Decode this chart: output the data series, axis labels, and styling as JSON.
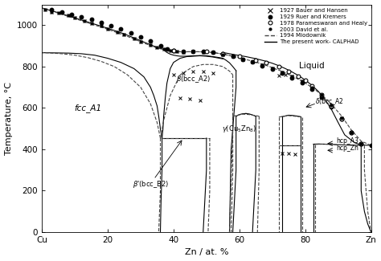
{
  "xlabel": "Zn / at. %",
  "ylabel": "Temperature, °C",
  "xlim": [
    0,
    100
  ],
  "ylim": [
    0,
    1100
  ],
  "xticks": [
    0,
    20,
    40,
    60,
    80,
    100
  ],
  "xticklabels": [
    "Cu",
    "20",
    "40",
    "60",
    "80",
    "Zn"
  ],
  "yticks": [
    0,
    200,
    400,
    600,
    800,
    1000
  ],
  "bg_color": "#ffffff",
  "calphad": {
    "liquidus_left": {
      "x": [
        0,
        5,
        10,
        15,
        20,
        25,
        30,
        33,
        35,
        36,
        37
      ],
      "y": [
        1083,
        1060,
        1035,
        1010,
        985,
        958,
        925,
        905,
        893,
        887,
        883
      ]
    },
    "liquidus_right": {
      "x": [
        55,
        57,
        59,
        62,
        65,
        68,
        70,
        72,
        74,
        76,
        78,
        80,
        82,
        84,
        86,
        88,
        90,
        92,
        95,
        97,
        100
      ],
      "y": [
        868,
        862,
        856,
        848,
        838,
        826,
        816,
        804,
        790,
        774,
        756,
        735,
        710,
        680,
        642,
        592,
        530,
        470,
        432,
        421,
        419
      ]
    },
    "fcc_solidus": {
      "x": [
        0,
        5,
        10,
        15,
        20,
        25,
        30,
        33,
        35,
        36,
        37
      ],
      "y": [
        1083,
        1060,
        1035,
        1010,
        985,
        958,
        925,
        905,
        893,
        887,
        883
      ]
    },
    "fcc_solvus": {
      "x": [
        36.5,
        36,
        35.5,
        35,
        34,
        33,
        31,
        28,
        24,
        20,
        16,
        12,
        8,
        4,
        0
      ],
      "y": [
        454,
        500,
        560,
        610,
        660,
        700,
        750,
        790,
        820,
        840,
        855,
        862,
        865,
        866,
        867
      ]
    },
    "beta_liquidus_left": {
      "x": [
        37,
        37.5,
        38,
        39,
        40,
        41,
        42,
        44,
        46,
        48,
        50,
        52,
        54,
        55
      ],
      "y": [
        883,
        874,
        868,
        860,
        855,
        852,
        850,
        850,
        852,
        853,
        852,
        848,
        843,
        840
      ]
    },
    "beta_liquidus_right": {
      "x": [
        55,
        56,
        57,
        58,
        59
      ],
      "y": [
        840,
        830,
        818,
        800,
        780
      ]
    },
    "beta_left_solidus": {
      "x": [
        36.5,
        36.8,
        37,
        37.5,
        38,
        39,
        40,
        42,
        44,
        46,
        48,
        50,
        52,
        54,
        55
      ],
      "y": [
        454,
        500,
        560,
        650,
        720,
        790,
        820,
        840,
        848,
        850,
        852,
        850,
        846,
        840,
        837
      ]
    },
    "beta_right_solvus": {
      "x": [
        59,
        59,
        58.5,
        58,
        57.5,
        57
      ],
      "y": [
        780,
        700,
        600,
        500,
        400,
        0
      ]
    },
    "beta_prime_left": {
      "x": [
        36.5,
        36.5,
        36.2,
        36
      ],
      "y": [
        454,
        300,
        150,
        0
      ]
    },
    "beta_prime_right": {
      "x": [
        50,
        50,
        49.5,
        49
      ],
      "y": [
        454,
        300,
        150,
        0
      ]
    },
    "beta_eutectoid": {
      "x": [
        36.5,
        42,
        46,
        50
      ],
      "y": [
        454,
        454,
        454,
        454
      ]
    },
    "gamma_left": {
      "x": [
        59,
        59,
        58.5,
        58
      ],
      "y": [
        560,
        300,
        150,
        0
      ]
    },
    "gamma_right": {
      "x": [
        65,
        65,
        64.5,
        64
      ],
      "y": [
        560,
        300,
        150,
        0
      ]
    },
    "gamma_top_left": {
      "x": [
        59,
        60,
        61,
        62
      ],
      "y": [
        560,
        568,
        572,
        573
      ]
    },
    "gamma_top_right": {
      "x": [
        62,
        63,
        64,
        65
      ],
      "y": [
        573,
        571,
        566,
        560
      ]
    },
    "delta_left": {
      "x": [
        73,
        73,
        73
      ],
      "y": [
        558,
        420,
        0
      ]
    },
    "delta_right": {
      "x": [
        78.5,
        78.5,
        78.5
      ],
      "y": [
        558,
        420,
        0
      ]
    },
    "delta_top": {
      "x": [
        73,
        75,
        76,
        77,
        78.5
      ],
      "y": [
        558,
        565,
        564,
        562,
        558
      ]
    },
    "delta_floor": {
      "x": [
        73,
        75,
        78.5
      ],
      "y": [
        420,
        420,
        420
      ]
    },
    "epsilon_left": {
      "x": [
        82.5,
        82.5,
        82.5
      ],
      "y": [
        425,
        300,
        0
      ]
    },
    "epsilon_top": {
      "x": [
        82.5,
        84,
        86,
        88,
        90,
        92,
        94,
        96
      ],
      "y": [
        425,
        426,
        425,
        424,
        422,
        421,
        420,
        419
      ]
    },
    "hcp_zn_left": {
      "x": [
        97,
        97,
        97,
        98,
        99,
        100
      ],
      "y": [
        419,
        350,
        200,
        100,
        40,
        0
      ]
    }
  },
  "miodownik": {
    "liquidus": {
      "x": [
        0,
        5,
        10,
        15,
        20,
        25,
        30,
        33,
        35,
        37,
        39,
        41,
        43,
        46,
        49,
        52,
        55,
        58,
        61,
        64,
        67,
        70,
        73,
        76,
        79,
        82,
        85,
        88,
        91,
        94,
        97,
        100
      ],
      "y": [
        1083,
        1058,
        1032,
        1006,
        980,
        952,
        920,
        901,
        890,
        882,
        876,
        872,
        871,
        872,
        871,
        868,
        860,
        850,
        838,
        826,
        812,
        795,
        776,
        754,
        730,
        700,
        664,
        618,
        562,
        494,
        440,
        419
      ]
    },
    "fcc_solvus": {
      "x": [
        36,
        35,
        33,
        30,
        26,
        22,
        18,
        14,
        10,
        6,
        2,
        0
      ],
      "y": [
        454,
        530,
        620,
        700,
        760,
        800,
        825,
        843,
        855,
        862,
        866,
        867
      ]
    },
    "beta_liquidus": {
      "x": [
        37,
        39,
        41,
        43,
        46,
        49,
        52,
        55,
        58
      ],
      "y": [
        882,
        876,
        872,
        871,
        872,
        871,
        868,
        860,
        850
      ]
    },
    "beta_left_solidus": {
      "x": [
        36,
        37,
        39,
        42,
        46,
        49,
        52,
        55,
        57,
        58
      ],
      "y": [
        454,
        540,
        660,
        760,
        800,
        810,
        810,
        800,
        778,
        760
      ]
    },
    "beta_right": {
      "x": [
        58,
        58,
        57.5,
        57
      ],
      "y": [
        760,
        500,
        250,
        0
      ]
    },
    "beta_prime_left": {
      "x": [
        36,
        36,
        35.5
      ],
      "y": [
        454,
        200,
        0
      ]
    },
    "beta_prime_right": {
      "x": [
        51,
        51,
        50.5
      ],
      "y": [
        454,
        200,
        0
      ]
    },
    "beta_eutectoid": {
      "x": [
        36,
        42,
        46,
        51
      ],
      "y": [
        454,
        454,
        454,
        454
      ]
    },
    "gamma_left": {
      "x": [
        58,
        58,
        57.5
      ],
      "y": [
        560,
        300,
        0
      ]
    },
    "gamma_right": {
      "x": [
        66,
        66,
        65.5
      ],
      "y": [
        560,
        300,
        0
      ]
    },
    "gamma_top": {
      "x": [
        58,
        61,
        63,
        66
      ],
      "y": [
        560,
        570,
        568,
        560
      ]
    },
    "delta_left": {
      "x": [
        72,
        72,
        72
      ],
      "y": [
        556,
        418,
        0
      ]
    },
    "delta_right": {
      "x": [
        79,
        79,
        79
      ],
      "y": [
        556,
        418,
        0
      ]
    },
    "delta_top": {
      "x": [
        72,
        75,
        79
      ],
      "y": [
        556,
        563,
        556
      ]
    },
    "delta_floor": {
      "x": [
        72,
        75,
        79
      ],
      "y": [
        418,
        418,
        418
      ]
    },
    "epsilon_left": {
      "x": [
        83,
        83,
        83
      ],
      "y": [
        424,
        200,
        0
      ]
    },
    "epsilon_top": {
      "x": [
        83,
        86,
        89,
        92,
        95,
        97
      ],
      "y": [
        424,
        425,
        423,
        421,
        420,
        419
      ]
    },
    "hcp_zn_left": {
      "x": [
        98,
        98,
        99,
        100
      ],
      "y": [
        419,
        300,
        100,
        0
      ]
    }
  },
  "bauer_hansen": {
    "liquidus": {
      "x": [
        1,
        3,
        5,
        8,
        10,
        13,
        15,
        18,
        20,
        23,
        25,
        28,
        30,
        33,
        35,
        37,
        39,
        41,
        43,
        46,
        49,
        52,
        55,
        58,
        61,
        64,
        67,
        70,
        73,
        76,
        79,
        82,
        85,
        88,
        91,
        94,
        97
      ],
      "y": [
        1075,
        1065,
        1058,
        1046,
        1035,
        1022,
        1010,
        996,
        982,
        968,
        953,
        937,
        920,
        905,
        893,
        883,
        877,
        873,
        871,
        872,
        871,
        868,
        858,
        848,
        836,
        822,
        808,
        791,
        774,
        754,
        730,
        700,
        662,
        612,
        550,
        482,
        428
      ]
    },
    "beta_region": {
      "x": [
        40,
        43,
        46,
        49,
        52
      ],
      "y": [
        760,
        770,
        778,
        776,
        770
      ]
    },
    "beta_low": {
      "x": [
        42,
        45,
        48
      ],
      "y": [
        650,
        645,
        638
      ]
    },
    "delta_region": {
      "x": [
        73,
        75,
        77
      ],
      "y": [
        380,
        382,
        378
      ]
    },
    "delta_high": {
      "x": [
        72,
        74,
        76
      ],
      "y": [
        756,
        760,
        754
      ]
    }
  },
  "ruer_kremers_x": [
    3,
    6,
    9,
    12,
    15,
    18,
    21,
    24,
    27,
    30,
    33,
    36,
    38,
    40,
    43,
    46,
    49,
    52,
    55,
    58,
    61,
    64,
    67,
    70,
    73,
    76,
    79,
    82,
    85,
    88,
    91,
    94,
    97,
    100
  ],
  "ruer_kremers_y": [
    1076,
    1065,
    1052,
    1040,
    1027,
    1013,
    998,
    982,
    964,
    944,
    922,
    900,
    886,
    876,
    872,
    874,
    873,
    869,
    860,
    848,
    836,
    821,
    805,
    787,
    768,
    745,
    720,
    690,
    653,
    606,
    548,
    480,
    428,
    419
  ],
  "parameswaran_x": [
    40,
    50,
    55,
    60,
    65,
    68,
    72,
    75,
    78,
    80,
    82,
    85,
    88,
    91,
    94,
    97
  ],
  "parameswaran_y": [
    876,
    872,
    862,
    848,
    830,
    818,
    798,
    778,
    754,
    734,
    706,
    664,
    610,
    548,
    480,
    428
  ],
  "david_x": [
    1,
    3,
    5,
    8,
    10,
    13,
    15,
    18,
    20,
    23,
    25,
    28,
    30,
    33,
    35,
    37,
    39,
    41,
    43,
    46,
    49,
    52,
    55,
    58,
    61,
    64,
    67,
    70,
    73,
    76,
    79,
    82,
    85,
    88,
    91,
    94,
    97
  ],
  "david_y": [
    1075,
    1065,
    1058,
    1046,
    1035,
    1022,
    1010,
    996,
    982,
    968,
    953,
    937,
    920,
    905,
    893,
    883,
    877,
    873,
    871,
    872,
    871,
    868,
    858,
    848,
    836,
    822,
    808,
    791,
    774,
    754,
    730,
    700,
    662,
    612,
    550,
    482,
    428
  ]
}
